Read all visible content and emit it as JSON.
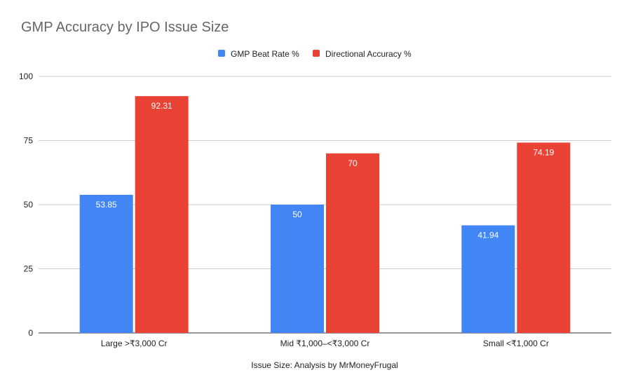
{
  "chart_data": {
    "type": "bar",
    "title": "GMP Accuracy by IPO Issue Size",
    "xlabel": "Issue Size: Analysis by MrMoneyFrugal",
    "ylabel": "",
    "categories": [
      "Large >₹3,000 Cr",
      "Mid ₹1,000–<₹3,000 Cr",
      "Small <₹1,000 Cr"
    ],
    "series": [
      {
        "name": "GMP Beat Rate %",
        "values": [
          53.85,
          50,
          41.94
        ],
        "color": "#4285f4",
        "labels": [
          "53.85",
          "50",
          "41.94"
        ]
      },
      {
        "name": "Directional Accuracy %",
        "values": [
          92.31,
          70,
          74.19
        ],
        "color": "#ea4335",
        "labels": [
          "92.31",
          "70",
          "74.19"
        ]
      }
    ],
    "ylim": [
      0,
      100
    ],
    "yticks": [
      0,
      25,
      50,
      75,
      100
    ],
    "ytick_labels": [
      "0",
      "25",
      "50",
      "75",
      "100"
    ],
    "grid": true,
    "legend": "top-center"
  }
}
